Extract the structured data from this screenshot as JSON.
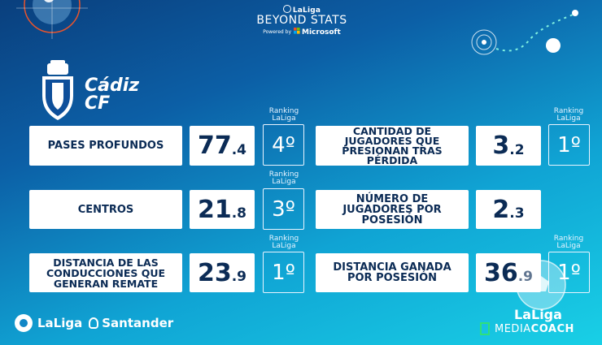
{
  "header": {
    "brand_top": "LaLiga",
    "brand_main": "BEYOND STATS",
    "powered_by": "Powered by",
    "microsoft": "Microsoft"
  },
  "club": {
    "name_line1": "Cádiz",
    "name_line2": "CF"
  },
  "stats": [
    {
      "label": "PASES PROFUNDOS",
      "value_int": "77",
      "value_dec": ".4",
      "ranking_caption": "Ranking LaLiga",
      "rank": "4º"
    },
    {
      "label": "CENTROS",
      "value_int": "21",
      "value_dec": ".8",
      "ranking_caption": "Ranking LaLiga",
      "rank": "3º"
    },
    {
      "label": "DISTANCIA DE LAS CONDUCCIONES QUE GENERAN REMATE",
      "value_int": "23",
      "value_dec": ".9",
      "ranking_caption": "Ranking LaLiga",
      "rank": "1º"
    },
    {
      "label": "CANTIDAD DE JUGADORES QUE PRESIONAN TRAS PÉRDIDA",
      "value_int": "3",
      "value_dec": ".2",
      "ranking_caption": "Ranking LaLiga",
      "rank": "1º"
    },
    {
      "label": "NÚMERO DE JUGADORES POR POSESIÓN",
      "value_int": "2",
      "value_dec": ".3",
      "ranking_caption": "",
      "rank": ""
    },
    {
      "label": "DISTANCIA GANADA POR POSESIÓN",
      "value_int": "36",
      "value_dec": ".9",
      "ranking_caption": "Ranking LaLiga",
      "rank": "1º"
    }
  ],
  "footer": {
    "left_brand": "LaLiga",
    "left_sponsor": "Santander",
    "right_brand": "LaLiga",
    "right_media": "MEDIA",
    "right_coach": "COACH"
  },
  "colors": {
    "panel_text": "#0b2b55",
    "accent_green": "#2fe07a"
  }
}
